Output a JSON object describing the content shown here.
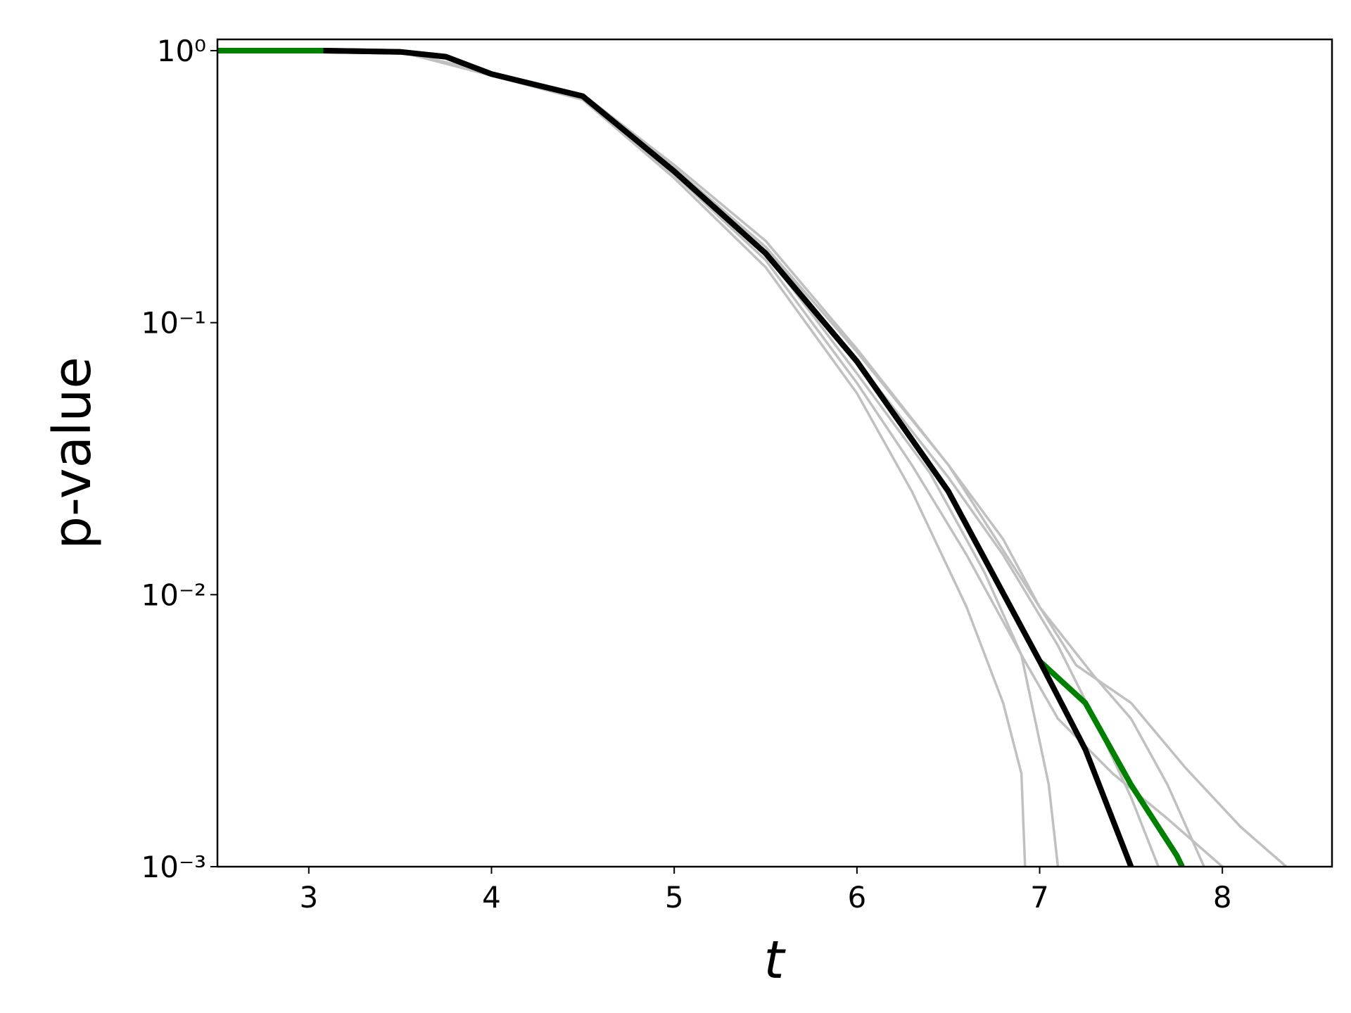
{
  "chart_data": {
    "type": "line",
    "xlabel": "t",
    "ylabel": "p-value",
    "xlim": [
      2.5,
      8.6
    ],
    "ylim": [
      0.001,
      1.1
    ],
    "log_y": true,
    "xticks": [
      3,
      4,
      5,
      6,
      7,
      8
    ],
    "yticks": [
      {
        "value": 0.001,
        "label": "10⁻³"
      },
      {
        "value": 0.01,
        "label": "10⁻²"
      },
      {
        "value": 0.1,
        "label": "10⁻¹"
      },
      {
        "value": 1,
        "label": "10⁰"
      }
    ],
    "series": [
      {
        "color": "#c0c0c0",
        "x": [
          3.5,
          4,
          4.5,
          5,
          5.5,
          6,
          6.5,
          6.8,
          7.0,
          7.2,
          7.5,
          7.8,
          8.1,
          8.35
        ],
        "values": [
          0.99,
          0.82,
          0.68,
          0.37,
          0.19,
          0.078,
          0.03,
          0.016,
          0.009,
          0.0055,
          0.004,
          0.0023,
          0.0014,
          0.001
        ]
      },
      {
        "color": "#c0c0c0",
        "x": [
          3.5,
          4,
          4.5,
          5,
          5.5,
          6,
          6.3,
          6.6,
          6.9,
          7.1,
          7.4,
          7.7,
          8.0
        ],
        "values": [
          0.99,
          0.82,
          0.67,
          0.35,
          0.17,
          0.06,
          0.03,
          0.014,
          0.006,
          0.0035,
          0.0022,
          0.0015,
          0.001
        ]
      },
      {
        "color": "#c0c0c0",
        "x": [
          3.5,
          4,
          4.5,
          5,
          5.5,
          6,
          6.3,
          6.6,
          6.8,
          6.9,
          6.92
        ],
        "values": [
          0.99,
          0.81,
          0.66,
          0.34,
          0.16,
          0.055,
          0.024,
          0.009,
          0.004,
          0.0022,
          0.001
        ]
      },
      {
        "color": "#c0c0c0",
        "x": [
          3.5,
          4,
          4.5,
          5,
          5.5,
          6,
          6.5,
          7.0,
          7.3,
          7.5,
          7.7,
          7.9
        ],
        "values": [
          0.99,
          0.83,
          0.69,
          0.38,
          0.2,
          0.08,
          0.03,
          0.009,
          0.005,
          0.0035,
          0.002,
          0.001
        ]
      },
      {
        "color": "#c0c0c0",
        "x": [
          3.5,
          4,
          4.5,
          5,
          5.5,
          6,
          6.4,
          6.7,
          6.9,
          7.05,
          7.1
        ],
        "values": [
          0.99,
          0.82,
          0.67,
          0.36,
          0.18,
          0.065,
          0.028,
          0.012,
          0.006,
          0.002,
          0.001
        ]
      },
      {
        "color": "#c0c0c0",
        "x": [
          3.5,
          4,
          4.5,
          5,
          5.5,
          6,
          6.5,
          6.8,
          7.1,
          7.3,
          7.5,
          7.65
        ],
        "values": [
          0.99,
          0.82,
          0.68,
          0.37,
          0.19,
          0.072,
          0.027,
          0.014,
          0.0065,
          0.0035,
          0.0018,
          0.001
        ]
      },
      {
        "color": "#008000",
        "x": [
          2.5,
          3.08,
          3.5,
          3.75,
          4,
          4.5,
          5,
          5.5,
          6,
          6.5,
          7,
          7.25,
          7.5,
          7.75,
          7.78
        ],
        "values": [
          1,
          1,
          0.99,
          0.95,
          0.82,
          0.68,
          0.36,
          0.18,
          0.072,
          0.024,
          0.0057,
          0.004,
          0.002,
          0.0011,
          0.001
        ]
      },
      {
        "color": "#000000",
        "x": [
          3.08,
          3.5,
          3.75,
          4,
          4.5,
          5,
          5.5,
          6,
          6.5,
          7,
          7.25,
          7.5
        ],
        "values": [
          1,
          0.99,
          0.95,
          0.82,
          0.68,
          0.36,
          0.18,
          0.072,
          0.024,
          0.0057,
          0.0027,
          0.001
        ]
      }
    ]
  }
}
